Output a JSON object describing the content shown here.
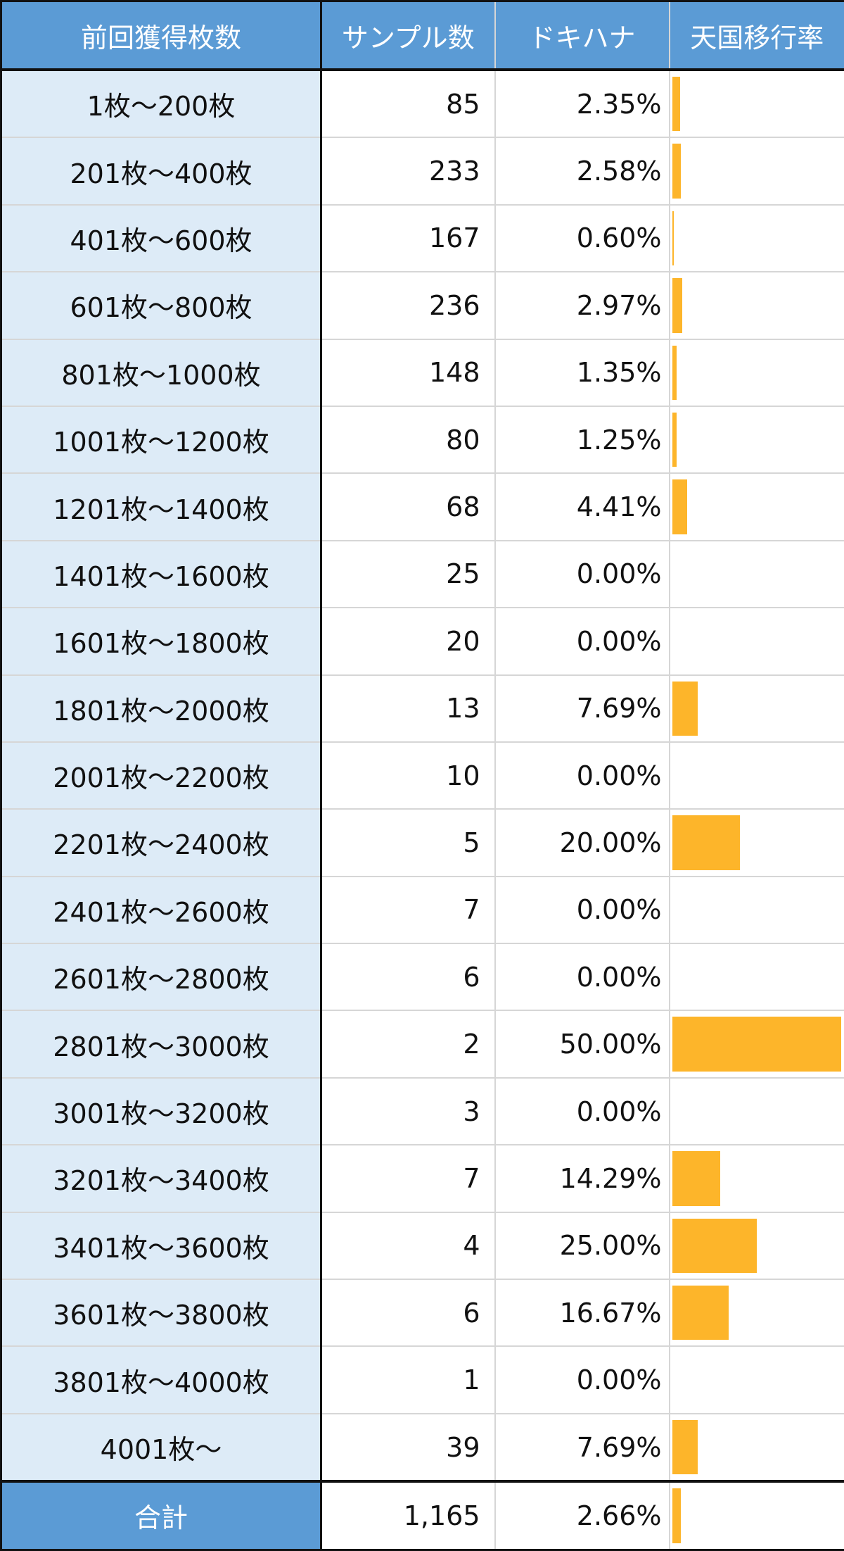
{
  "headers": [
    "前回獲得枚数",
    "サンプル数",
    "ドキハナ",
    "天国移行率"
  ],
  "bar_color": "#fdb52a",
  "bar_max_percent": 50,
  "rows": [
    {
      "range": "1枚～200枚",
      "samples": "85",
      "rate": "2.35%",
      "value": 2.35
    },
    {
      "range": "201枚～400枚",
      "samples": "233",
      "rate": "2.58%",
      "value": 2.58
    },
    {
      "range": "401枚～600枚",
      "samples": "167",
      "rate": "0.60%",
      "value": 0.6
    },
    {
      "range": "601枚～800枚",
      "samples": "236",
      "rate": "2.97%",
      "value": 2.97
    },
    {
      "range": "801枚～1000枚",
      "samples": "148",
      "rate": "1.35%",
      "value": 1.35
    },
    {
      "range": "1001枚～1200枚",
      "samples": "80",
      "rate": "1.25%",
      "value": 1.25
    },
    {
      "range": "1201枚～1400枚",
      "samples": "68",
      "rate": "4.41%",
      "value": 4.41
    },
    {
      "range": "1401枚～1600枚",
      "samples": "25",
      "rate": "0.00%",
      "value": 0
    },
    {
      "range": "1601枚～1800枚",
      "samples": "20",
      "rate": "0.00%",
      "value": 0
    },
    {
      "range": "1801枚～2000枚",
      "samples": "13",
      "rate": "7.69%",
      "value": 7.69
    },
    {
      "range": "2001枚～2200枚",
      "samples": "10",
      "rate": "0.00%",
      "value": 0
    },
    {
      "range": "2201枚～2400枚",
      "samples": "5",
      "rate": "20.00%",
      "value": 20
    },
    {
      "range": "2401枚～2600枚",
      "samples": "7",
      "rate": "0.00%",
      "value": 0
    },
    {
      "range": "2601枚～2800枚",
      "samples": "6",
      "rate": "0.00%",
      "value": 0
    },
    {
      "range": "2801枚～3000枚",
      "samples": "2",
      "rate": "50.00%",
      "value": 50
    },
    {
      "range": "3001枚～3200枚",
      "samples": "3",
      "rate": "0.00%",
      "value": 0
    },
    {
      "range": "3201枚～3400枚",
      "samples": "7",
      "rate": "14.29%",
      "value": 14.29
    },
    {
      "range": "3401枚～3600枚",
      "samples": "4",
      "rate": "25.00%",
      "value": 25
    },
    {
      "range": "3601枚～3800枚",
      "samples": "6",
      "rate": "16.67%",
      "value": 16.67
    },
    {
      "range": "3801枚～4000枚",
      "samples": "1",
      "rate": "0.00%",
      "value": 0
    },
    {
      "range": "4001枚～",
      "samples": "39",
      "rate": "7.69%",
      "value": 7.69
    }
  ],
  "total": {
    "label": "合計",
    "samples": "1,165",
    "rate": "2.66%",
    "value": 2.66
  }
}
